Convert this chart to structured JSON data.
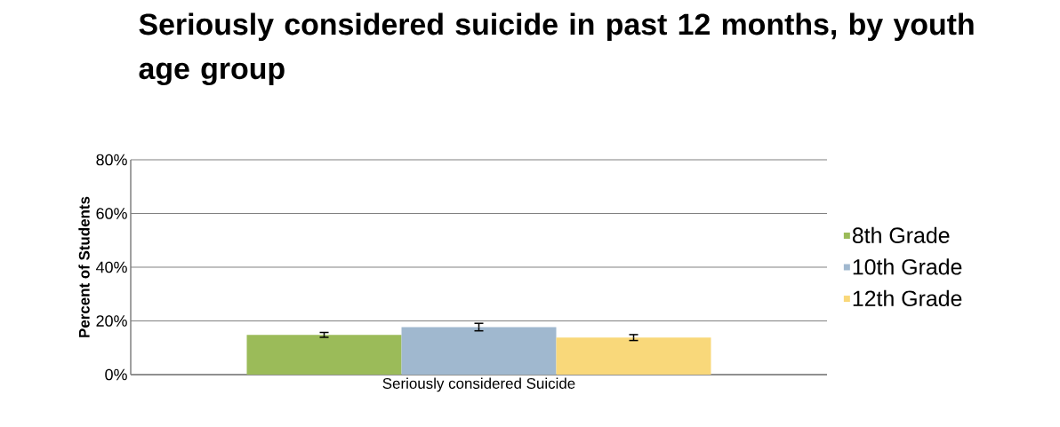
{
  "chart_data": {
    "type": "bar",
    "title": "Seriously considered suicide in past 12 months, by youth age group",
    "ylabel": "Percent of Students",
    "categories": [
      "Seriously considered Suicide"
    ],
    "series": [
      {
        "name": "8th Grade",
        "color": "#9bbb59",
        "values": [
          14.8
        ],
        "errors": [
          0.9
        ]
      },
      {
        "name": "10th Grade",
        "color": "#a0b8cf",
        "values": [
          17.7
        ],
        "errors": [
          1.4
        ]
      },
      {
        "name": "12th Grade",
        "color": "#f9d87a",
        "values": [
          13.8
        ],
        "errors": [
          1.1
        ]
      }
    ],
    "ylim": [
      0,
      80
    ],
    "yticks": [
      {
        "value": 0,
        "label": "0%"
      },
      {
        "value": 20,
        "label": "20%"
      },
      {
        "value": 40,
        "label": "40%"
      },
      {
        "value": 60,
        "label": "60%"
      },
      {
        "value": 80,
        "label": "80%"
      }
    ],
    "grid": "y",
    "legend": "right"
  }
}
